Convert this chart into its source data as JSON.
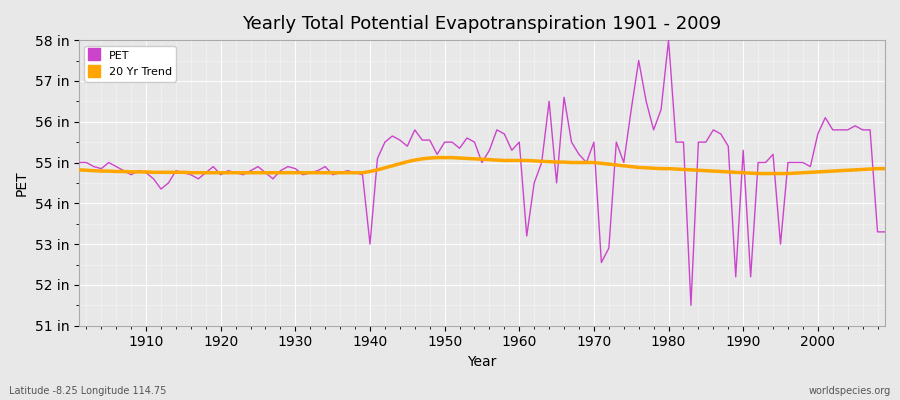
{
  "title": "Yearly Total Potential Evapotranspiration 1901 - 2009",
  "xlabel": "Year",
  "ylabel": "PET",
  "subtitle_left": "Latitude -8.25 Longitude 114.75",
  "subtitle_right": "worldspecies.org",
  "ylim": [
    51,
    58
  ],
  "yticks": [
    51,
    52,
    53,
    54,
    55,
    56,
    57,
    58
  ],
  "xlim": [
    1901,
    2009
  ],
  "xticks": [
    1910,
    1920,
    1930,
    1940,
    1950,
    1960,
    1970,
    1980,
    1990,
    2000
  ],
  "pet_color": "#CC44CC",
  "trend_color": "#FFA500",
  "bg_color": "#E8E8E8",
  "years": [
    1901,
    1902,
    1903,
    1904,
    1905,
    1906,
    1907,
    1908,
    1909,
    1910,
    1911,
    1912,
    1913,
    1914,
    1915,
    1916,
    1917,
    1918,
    1919,
    1920,
    1921,
    1922,
    1923,
    1924,
    1925,
    1926,
    1927,
    1928,
    1929,
    1930,
    1931,
    1932,
    1933,
    1934,
    1935,
    1936,
    1937,
    1938,
    1939,
    1940,
    1941,
    1942,
    1943,
    1944,
    1945,
    1946,
    1947,
    1948,
    1949,
    1950,
    1951,
    1952,
    1953,
    1954,
    1955,
    1956,
    1957,
    1958,
    1959,
    1960,
    1961,
    1962,
    1963,
    1964,
    1965,
    1966,
    1967,
    1968,
    1969,
    1970,
    1971,
    1972,
    1973,
    1974,
    1975,
    1976,
    1977,
    1978,
    1979,
    1980,
    1981,
    1982,
    1983,
    1984,
    1985,
    1986,
    1987,
    1988,
    1989,
    1990,
    1991,
    1992,
    1993,
    1994,
    1995,
    1996,
    1997,
    1998,
    1999,
    2000,
    2001,
    2002,
    2003,
    2004,
    2005,
    2006,
    2007,
    2008,
    2009
  ],
  "pet": [
    55.0,
    55.0,
    54.9,
    54.85,
    55.0,
    54.9,
    54.8,
    54.7,
    54.8,
    54.75,
    54.6,
    54.35,
    54.5,
    54.8,
    54.75,
    54.7,
    54.6,
    54.75,
    54.9,
    54.7,
    54.8,
    54.75,
    54.7,
    54.8,
    54.9,
    54.75,
    54.6,
    54.8,
    54.9,
    54.85,
    54.7,
    54.75,
    54.8,
    54.9,
    54.7,
    54.75,
    54.8,
    54.75,
    54.7,
    53.0,
    55.1,
    55.5,
    55.65,
    55.55,
    55.4,
    55.8,
    55.55,
    55.55,
    55.2,
    55.5,
    55.5,
    55.35,
    55.6,
    55.5,
    55.0,
    55.3,
    55.8,
    55.7,
    55.3,
    55.5,
    53.2,
    54.5,
    55.0,
    56.5,
    54.5,
    56.6,
    55.5,
    55.2,
    55.0,
    55.5,
    52.55,
    52.9,
    55.5,
    55.0,
    56.3,
    57.5,
    56.5,
    55.8,
    56.3,
    58.0,
    55.5,
    55.5,
    51.5,
    55.5,
    55.5,
    55.8,
    55.7,
    55.4,
    52.2,
    55.3,
    52.2,
    55.0,
    55.0,
    55.2,
    53.0,
    55.0,
    55.0,
    55.0,
    54.9,
    55.7,
    56.1,
    55.8,
    55.8,
    55.8,
    55.9,
    55.8,
    55.8,
    53.3,
    53.3
  ],
  "trend": [
    54.82,
    54.81,
    54.8,
    54.79,
    54.79,
    54.78,
    54.78,
    54.77,
    54.77,
    54.77,
    54.76,
    54.76,
    54.76,
    54.76,
    54.76,
    54.75,
    54.75,
    54.75,
    54.75,
    54.75,
    54.75,
    54.75,
    54.75,
    54.75,
    54.75,
    54.75,
    54.75,
    54.75,
    54.75,
    54.75,
    54.75,
    54.75,
    54.75,
    54.75,
    54.75,
    54.75,
    54.75,
    54.75,
    54.75,
    54.78,
    54.82,
    54.87,
    54.92,
    54.97,
    55.02,
    55.06,
    55.09,
    55.11,
    55.12,
    55.12,
    55.12,
    55.11,
    55.1,
    55.09,
    55.08,
    55.07,
    55.06,
    55.05,
    55.05,
    55.05,
    55.05,
    55.04,
    55.03,
    55.02,
    55.01,
    55.01,
    55.0,
    55.0,
    55.0,
    55.0,
    54.98,
    54.96,
    54.94,
    54.92,
    54.9,
    54.88,
    54.87,
    54.86,
    54.85,
    54.85,
    54.84,
    54.83,
    54.82,
    54.81,
    54.8,
    54.79,
    54.78,
    54.77,
    54.76,
    54.75,
    54.74,
    54.73,
    54.73,
    54.73,
    54.73,
    54.73,
    54.74,
    54.75,
    54.76,
    54.77,
    54.78,
    54.79,
    54.8,
    54.81,
    54.82,
    54.83,
    54.84,
    54.85,
    54.85
  ]
}
